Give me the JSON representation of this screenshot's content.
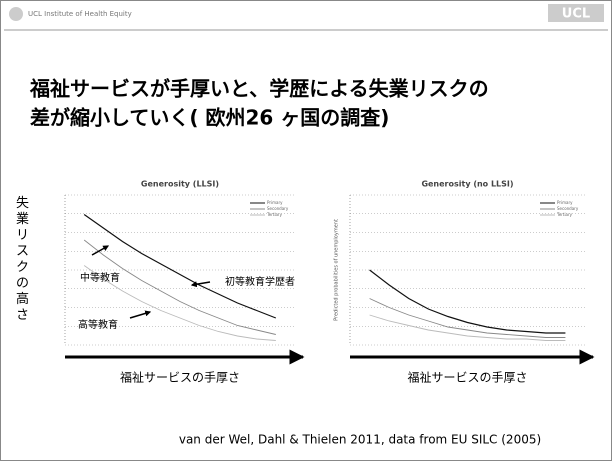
{
  "header": {
    "org": "UCL Institute of Health Equity",
    "logo": "UCL"
  },
  "title": [
    "福祉サービスが手厚いと、学歴による失業リスクの",
    "差が縮小していく( 欧州26 ヶ国の調査)"
  ],
  "citation": "van der Wel, Dahl & Thielen 2011, data from EU SILC (2005)",
  "chart_data": [
    {
      "type": "line",
      "title": "Generosity (LLSI)",
      "y_label": "失業リスクの高さ",
      "x_label": "福祉サービスの手厚さ",
      "annotations": [
        "中等教育",
        "初等教育学歴者",
        "高等教育"
      ],
      "x": [
        0,
        1,
        2,
        3,
        4,
        5,
        6,
        7,
        8,
        9,
        10
      ],
      "xlim": [
        -1,
        11
      ],
      "ylim": [
        0,
        1
      ],
      "series": [
        {
          "name": "Primary",
          "color": "#111111",
          "values": [
            0.87,
            0.78,
            0.69,
            0.61,
            0.54,
            0.47,
            0.4,
            0.34,
            0.28,
            0.23,
            0.18
          ]
        },
        {
          "name": "Secondary",
          "color": "#888888",
          "values": [
            0.7,
            0.6,
            0.51,
            0.43,
            0.36,
            0.29,
            0.23,
            0.18,
            0.13,
            0.1,
            0.07
          ]
        },
        {
          "name": "Tertiary",
          "color": "#bbbbbb",
          "values": [
            0.53,
            0.44,
            0.36,
            0.29,
            0.23,
            0.18,
            0.13,
            0.09,
            0.06,
            0.04,
            0.03
          ]
        }
      ]
    },
    {
      "type": "line",
      "title": "Generosity (no LLSI)",
      "y_label": "Predicted probabilities of unemployment",
      "x_label": "福祉サービスの手厚さ",
      "x": [
        0,
        1,
        2,
        3,
        4,
        5,
        6,
        7,
        8,
        9,
        10
      ],
      "xlim": [
        -1,
        11
      ],
      "ylim": [
        0,
        1
      ],
      "series": [
        {
          "name": "Primary",
          "color": "#111111",
          "values": [
            0.5,
            0.4,
            0.31,
            0.24,
            0.19,
            0.15,
            0.12,
            0.1,
            0.09,
            0.08,
            0.08
          ]
        },
        {
          "name": "Secondary",
          "color": "#888888",
          "values": [
            0.31,
            0.25,
            0.2,
            0.16,
            0.12,
            0.1,
            0.08,
            0.07,
            0.06,
            0.05,
            0.05
          ]
        },
        {
          "name": "Tertiary",
          "color": "#bbbbbb",
          "values": [
            0.2,
            0.16,
            0.13,
            0.1,
            0.08,
            0.06,
            0.05,
            0.04,
            0.04,
            0.03,
            0.03
          ]
        }
      ]
    }
  ]
}
